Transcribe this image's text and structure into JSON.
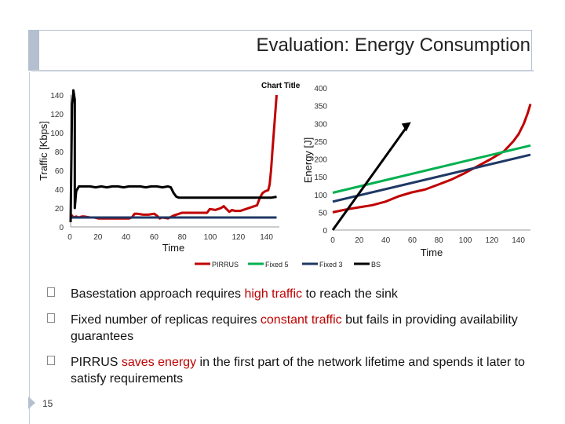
{
  "slide": {
    "title": "Evaluation: Energy Consumption",
    "page_number": "15",
    "colors": {
      "accent": "#b4bfd0",
      "highlight": "#c00000"
    }
  },
  "chart_data": [
    {
      "type": "line",
      "title": "",
      "xlabel": "Time",
      "ylabel": "Traffic [Kbps]",
      "xlim": [
        0,
        150
      ],
      "ylim": [
        0,
        140
      ],
      "xticks": [
        "0",
        "20",
        "40",
        "60",
        "80",
        "100",
        "120",
        "140"
      ],
      "yticks": [
        "0",
        "20",
        "40",
        "60",
        "80",
        "100",
        "120",
        "140"
      ],
      "series": [
        {
          "name": "PIRRUS",
          "color": "#c00000",
          "points": [
            [
              0,
              12
            ],
            [
              1,
              12
            ],
            [
              2,
              10
            ],
            [
              4,
              11
            ],
            [
              6,
              10
            ],
            [
              8,
              11
            ],
            [
              10,
              11
            ],
            [
              14,
              10
            ],
            [
              17,
              10
            ],
            [
              20,
              9
            ],
            [
              30,
              9
            ],
            [
              38,
              9
            ],
            [
              42,
              9
            ],
            [
              44,
              10
            ],
            [
              46,
              14
            ],
            [
              48,
              14
            ],
            [
              52,
              13
            ],
            [
              56,
              13
            ],
            [
              60,
              14
            ],
            [
              62,
              12
            ],
            [
              64,
              9
            ],
            [
              66,
              10
            ],
            [
              70,
              9
            ],
            [
              74,
              12
            ],
            [
              80,
              15
            ],
            [
              90,
              15
            ],
            [
              98,
              15
            ],
            [
              100,
              19
            ],
            [
              104,
              18
            ],
            [
              108,
              20
            ],
            [
              110,
              22
            ],
            [
              112,
              19
            ],
            [
              114,
              16
            ],
            [
              116,
              18
            ],
            [
              118,
              17
            ],
            [
              122,
              17
            ],
            [
              126,
              19
            ],
            [
              130,
              21
            ],
            [
              134,
              23
            ],
            [
              136,
              31
            ],
            [
              138,
              36
            ],
            [
              140,
              38
            ],
            [
              142,
              39
            ],
            [
              143,
              45
            ],
            [
              144,
              60
            ],
            [
              145,
              80
            ],
            [
              146,
              100
            ],
            [
              147,
              120
            ],
            [
              148,
              140
            ]
          ]
        },
        {
          "name": "Fixed 5",
          "color": "#00b050",
          "points": [
            [
              0,
              10
            ],
            [
              2,
              10
            ],
            [
              4,
              10
            ],
            [
              148,
              10
            ]
          ]
        },
        {
          "name": "Fixed 3",
          "color": "#1f3864",
          "points": [
            [
              0,
              10
            ],
            [
              3,
              10
            ],
            [
              6,
              10
            ],
            [
              148,
              10
            ]
          ]
        },
        {
          "name": "BS",
          "color": "#000000",
          "points": [
            [
              0,
              5
            ],
            [
              1,
              130
            ],
            [
              2,
              143
            ],
            [
              2,
              145
            ],
            [
              3,
              135
            ],
            [
              3,
              20
            ],
            [
              4,
              38
            ],
            [
              6,
              43
            ],
            [
              10,
              43
            ],
            [
              14,
              43
            ],
            [
              18,
              42
            ],
            [
              22,
              43
            ],
            [
              26,
              42
            ],
            [
              30,
              43
            ],
            [
              34,
              43
            ],
            [
              38,
              42
            ],
            [
              42,
              43
            ],
            [
              46,
              43
            ],
            [
              50,
              43
            ],
            [
              54,
              42
            ],
            [
              58,
              43
            ],
            [
              62,
              43
            ],
            [
              66,
              42
            ],
            [
              70,
              43
            ],
            [
              72,
              42
            ],
            [
              74,
              36
            ],
            [
              76,
              32
            ],
            [
              78,
              31
            ],
            [
              80,
              31
            ],
            [
              85,
              31
            ],
            [
              90,
              31
            ],
            [
              95,
              31
            ],
            [
              100,
              31
            ],
            [
              106,
              31
            ],
            [
              112,
              31
            ],
            [
              118,
              31
            ],
            [
              124,
              31
            ],
            [
              130,
              31
            ],
            [
              136,
              31
            ],
            [
              140,
              31
            ],
            [
              144,
              31
            ],
            [
              148,
              32
            ]
          ]
        }
      ]
    },
    {
      "type": "line",
      "title": "",
      "xlabel": "Time",
      "ylabel": "Energy [J]",
      "xlim": [
        0,
        150
      ],
      "ylim": [
        0,
        400
      ],
      "xticks": [
        "0",
        "20",
        "40",
        "60",
        "80",
        "100",
        "120",
        "140"
      ],
      "yticks": [
        "0",
        "50",
        "100",
        "150",
        "200",
        "250",
        "300",
        "350",
        "400"
      ],
      "series": [
        {
          "name": "PIRRUS",
          "color": "#c00000",
          "points": [
            [
              0,
              50
            ],
            [
              10,
              58
            ],
            [
              20,
              64
            ],
            [
              30,
              70
            ],
            [
              40,
              80
            ],
            [
              50,
              95
            ],
            [
              60,
              106
            ],
            [
              70,
              114
            ],
            [
              80,
              128
            ],
            [
              90,
              142
            ],
            [
              100,
              160
            ],
            [
              110,
              180
            ],
            [
              120,
              200
            ],
            [
              130,
              222
            ],
            [
              137,
              250
            ],
            [
              141,
              270
            ],
            [
              145,
              300
            ],
            [
              148,
              330
            ],
            [
              150,
              355
            ]
          ]
        },
        {
          "name": "Fixed 5",
          "color": "#00b050",
          "points": [
            [
              0,
              105
            ],
            [
              150,
              238
            ]
          ]
        },
        {
          "name": "Fixed 3",
          "color": "#1f3864",
          "points": [
            [
              0,
              80
            ],
            [
              150,
              212
            ]
          ]
        },
        {
          "name": "BS",
          "color": "#000000",
          "points": [
            [
              0,
              0
            ],
            [
              57,
              295
            ]
          ]
        }
      ]
    }
  ],
  "legend": [
    {
      "name": "PIRRUS",
      "color": "#c00000"
    },
    {
      "name": "Fixed 5",
      "color": "#00b050"
    },
    {
      "name": "Fixed 3",
      "color": "#1f3864"
    },
    {
      "name": "BS",
      "color": "#000000"
    }
  ],
  "bullets": [
    {
      "pre": "Basestation approach requires ",
      "hl": "high traffic",
      "post": " to reach the sink"
    },
    {
      "pre": "Fixed number of replicas requires ",
      "hl": "constant traffic",
      "post": " but fails in providing availability guarantees"
    },
    {
      "pre": "PIRRUS ",
      "hl": "saves energy",
      "post": " in the first part of the network lifetime and spends it later to satisfy requirements"
    }
  ],
  "chart_title_label": "Chart Title"
}
